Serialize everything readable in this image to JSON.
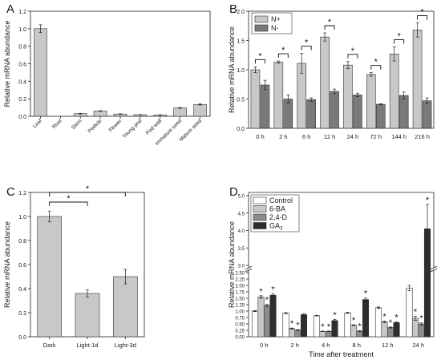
{
  "chart_data": [
    {
      "panel": "A",
      "type": "bar",
      "ylabel": "Relative mRNA abundance",
      "ylim": [
        0,
        1.2
      ],
      "yticks": [
        "0.0",
        "0.2",
        "0.4",
        "0.6",
        "0.8",
        "1.0",
        "1.2"
      ],
      "categories": [
        "Leaf",
        "Root",
        "Stem",
        "Pedicle",
        "Flower",
        "Young pod",
        "Pod wall",
        "Immature seed",
        "Mature seed"
      ],
      "values": [
        1.0,
        0.0,
        0.03,
        0.06,
        0.025,
        0.018,
        0.015,
        0.095,
        0.135
      ],
      "errors": [
        0.045,
        0.0,
        0.004,
        0.004,
        0.003,
        0.002,
        0.002,
        0.005,
        0.006
      ],
      "color": "#c8c8c8"
    },
    {
      "panel": "B",
      "type": "bar",
      "ylabel": "Relative mRNA abundance",
      "ylim": [
        0,
        2.0
      ],
      "yticks": [
        "0.0",
        "0.5",
        "1.0",
        "1.5",
        "2.0"
      ],
      "categories": [
        "0 h",
        "2 h",
        "6 h",
        "12 h",
        "24 h",
        "72 h",
        "144 h",
        "216 h"
      ],
      "series": [
        {
          "name": "N+",
          "color": "#c8c8c8",
          "values": [
            1.0,
            1.13,
            1.11,
            1.56,
            1.08,
            0.92,
            1.27,
            1.68
          ],
          "errors": [
            0.05,
            0.02,
            0.17,
            0.07,
            0.06,
            0.03,
            0.12,
            0.12
          ]
        },
        {
          "name": "N-",
          "color": "#7a7a7a",
          "values": [
            0.74,
            0.5,
            0.49,
            0.63,
            0.57,
            0.41,
            0.56,
            0.47
          ],
          "errors": [
            0.08,
            0.07,
            0.03,
            0.04,
            0.03,
            0.01,
            0.06,
            0.05
          ]
        }
      ],
      "significance": "*",
      "legend": "top-left"
    },
    {
      "panel": "C",
      "type": "bar",
      "ylabel": "Relative mRNA abundance",
      "ylim": [
        0,
        1.2
      ],
      "yticks": [
        "0.0",
        "0.2",
        "0.4",
        "0.6",
        "0.8",
        "1.0",
        "1.2"
      ],
      "categories": [
        "Dark",
        "Light-1d",
        "Light-3d"
      ],
      "values": [
        1.0,
        0.36,
        0.5
      ],
      "errors": [
        0.045,
        0.03,
        0.06
      ],
      "significance": "*",
      "color": "#c8c8c8"
    },
    {
      "panel": "D",
      "type": "bar",
      "ylabel": "Relative mRNA abundance",
      "xlabel": "Time after treatment",
      "ylim": [
        0,
        5.0
      ],
      "axis_break": [
        2.5,
        3.0
      ],
      "yticks_lower": [
        "0.00",
        "0.25",
        "0.50",
        "0.75",
        "1.00",
        "1.25",
        "1.50",
        "1.75",
        "2.00",
        "2.25",
        "2.50"
      ],
      "yticks_upper": [
        "3.0",
        "3.5",
        "4.0",
        "4.5",
        "5.0"
      ],
      "categories": [
        "0 h",
        "2 h",
        "4 h",
        "8 h",
        "12 h",
        "24 h"
      ],
      "series": [
        {
          "name": "Control",
          "color": "#ffffff",
          "values": [
            1.0,
            0.92,
            0.82,
            0.93,
            1.13,
            1.9
          ],
          "errors": [
            0.02,
            0.02,
            0.01,
            0.02,
            0.03,
            0.1
          ],
          "stars": [
            false,
            false,
            false,
            false,
            false,
            false
          ]
        },
        {
          "name": "6-BA",
          "color": "#c8c8c8",
          "values": [
            1.55,
            0.32,
            0.21,
            0.45,
            0.58,
            0.72
          ],
          "errors": [
            0.05,
            0.02,
            0.01,
            0.02,
            0.03,
            0.08
          ],
          "stars": [
            true,
            true,
            true,
            true,
            true,
            true
          ]
        },
        {
          "name": "2,4-D",
          "color": "#8c8c8c",
          "values": [
            1.22,
            0.26,
            0.21,
            0.22,
            0.36,
            0.5
          ],
          "errors": [
            0.04,
            0.02,
            0.01,
            0.02,
            0.02,
            0.04
          ],
          "stars": [
            true,
            true,
            true,
            true,
            true,
            true
          ]
        },
        {
          "name": "GA3",
          "name_base": "GA",
          "name_sub": "3",
          "color": "#2e2e2e",
          "values": [
            1.62,
            0.86,
            0.63,
            1.45,
            0.55,
            4.05
          ],
          "errors": [
            0.05,
            0.04,
            0.04,
            0.06,
            0.03,
            0.7
          ],
          "stars": [
            true,
            false,
            true,
            true,
            true,
            true
          ]
        }
      ],
      "significance": "*",
      "legend": "top-left"
    }
  ],
  "panel_labels": [
    "A",
    "B",
    "C",
    "D"
  ]
}
